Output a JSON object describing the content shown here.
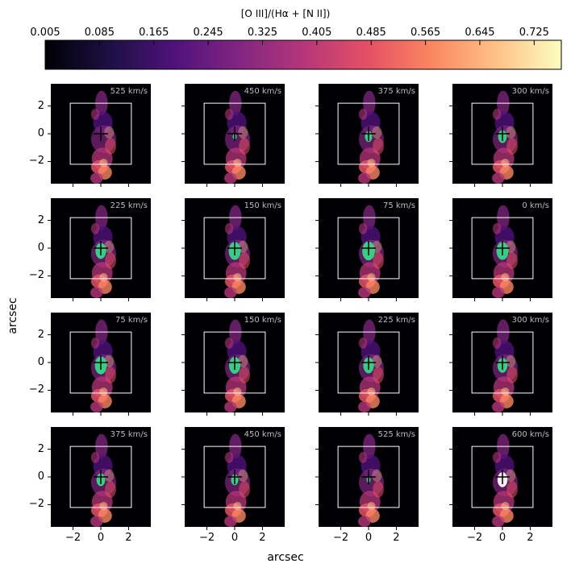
{
  "colorbar": {
    "label": "[O III]/(Hα + [N II])",
    "ticks": [
      "0.005",
      "0.085",
      "0.165",
      "0.245",
      "0.325",
      "0.405",
      "0.485",
      "0.565",
      "0.645",
      "0.725"
    ],
    "range": [
      0.005,
      0.765
    ],
    "colormap": [
      "#000004",
      "#1c1044",
      "#4f127b",
      "#812581",
      "#b5367a",
      "#e55064",
      "#fb8761",
      "#fec287",
      "#fcfdbf"
    ]
  },
  "axes": {
    "xlabel": "arcsec",
    "ylabel": "arcsec",
    "xlim": [
      -3.6,
      3.6
    ],
    "ylim": [
      -3.6,
      3.6
    ],
    "xticks": [
      "−2",
      "0",
      "2"
    ],
    "yticks": [
      "2",
      "0",
      "−2"
    ]
  },
  "chart_data": {
    "type": "heatmap",
    "description_free": true,
    "panel_labels": [
      "525 km/s",
      "450 km/s",
      "375 km/s",
      "300 km/s",
      "225 km/s",
      "150 km/s",
      "75 km/s",
      "0 km/s",
      "75 km/s",
      "150 km/s",
      "225 km/s",
      "300 km/s",
      "375 km/s",
      "450 km/s",
      "525 km/s",
      "600 km/s"
    ],
    "box_extent_arcsec": [
      -2.2,
      2.2
    ],
    "contour_color": "#2ee08a",
    "highlight_color": "#ffffff",
    "contour_rel_size": [
      0.0,
      0.12,
      0.22,
      0.26,
      0.32,
      0.36,
      0.38,
      0.36,
      0.36,
      0.34,
      0.32,
      0.3,
      0.26,
      0.22,
      0.12,
      0.3
    ]
  }
}
